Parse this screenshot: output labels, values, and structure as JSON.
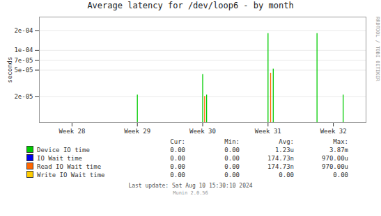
{
  "chart_data": {
    "type": "spike",
    "title": "Average latency for /dev/loop6 - by month",
    "ylabel": "seconds",
    "log": "y",
    "grid": true,
    "xlim": [
      -0.5,
      4.5
    ],
    "xticks": [
      {
        "value": 0,
        "label": "Week 28"
      },
      {
        "value": 1,
        "label": "Week 29"
      },
      {
        "value": 2,
        "label": "Week 30"
      },
      {
        "value": 3,
        "label": "Week 31"
      },
      {
        "value": 4,
        "label": "Week 32"
      }
    ],
    "ylim": [
      8e-06,
      0.00032
    ],
    "yticks": [
      {
        "value": 2e-05,
        "label": "2e-05"
      },
      {
        "value": 5e-05,
        "label": "5e-05"
      },
      {
        "value": 7e-05,
        "label": "7e-05"
      },
      {
        "value": 0.0001,
        "label": "1e-04"
      },
      {
        "value": 0.0002,
        "label": "2e-04"
      }
    ],
    "stats_header": [
      "Cur:",
      "Min:",
      "Avg:",
      "Max:"
    ],
    "series": [
      {
        "name": "Device IO time",
        "color": "#00cc00",
        "x": [
          1.0,
          2.0,
          2.06,
          3.0,
          3.08,
          3.75,
          4.15
        ],
        "values": [
          2.1e-05,
          4.3e-05,
          2.1e-05,
          0.00018,
          5.2e-05,
          0.00018,
          2.1e-05
        ],
        "stats": [
          "0.00",
          "0.00",
          "1.23u",
          "3.87m"
        ]
      },
      {
        "name": "IO Wait time",
        "color": "#0000ee",
        "x": [],
        "values": [],
        "stats": [
          "0.00",
          "0.00",
          "174.73n",
          "970.00u"
        ]
      },
      {
        "name": "Read IO Wait time",
        "color": "#ff6600",
        "x": [
          2.03,
          3.04
        ],
        "values": [
          2e-05,
          4.5e-05
        ],
        "stats": [
          "0.00",
          "0.00",
          "174.73n",
          "970.00u"
        ]
      },
      {
        "name": "Write IO Wait time",
        "color": "#ffcc00",
        "x": [],
        "values": [],
        "stats": [
          "0.00",
          "0.00",
          "0.00",
          "0.00"
        ]
      }
    ],
    "annotations": [
      "Last update: Sat Aug 10 15:30:10 2024",
      "Munin 2.0.56",
      "RRDTOOL / TOBI OETIKER"
    ]
  }
}
